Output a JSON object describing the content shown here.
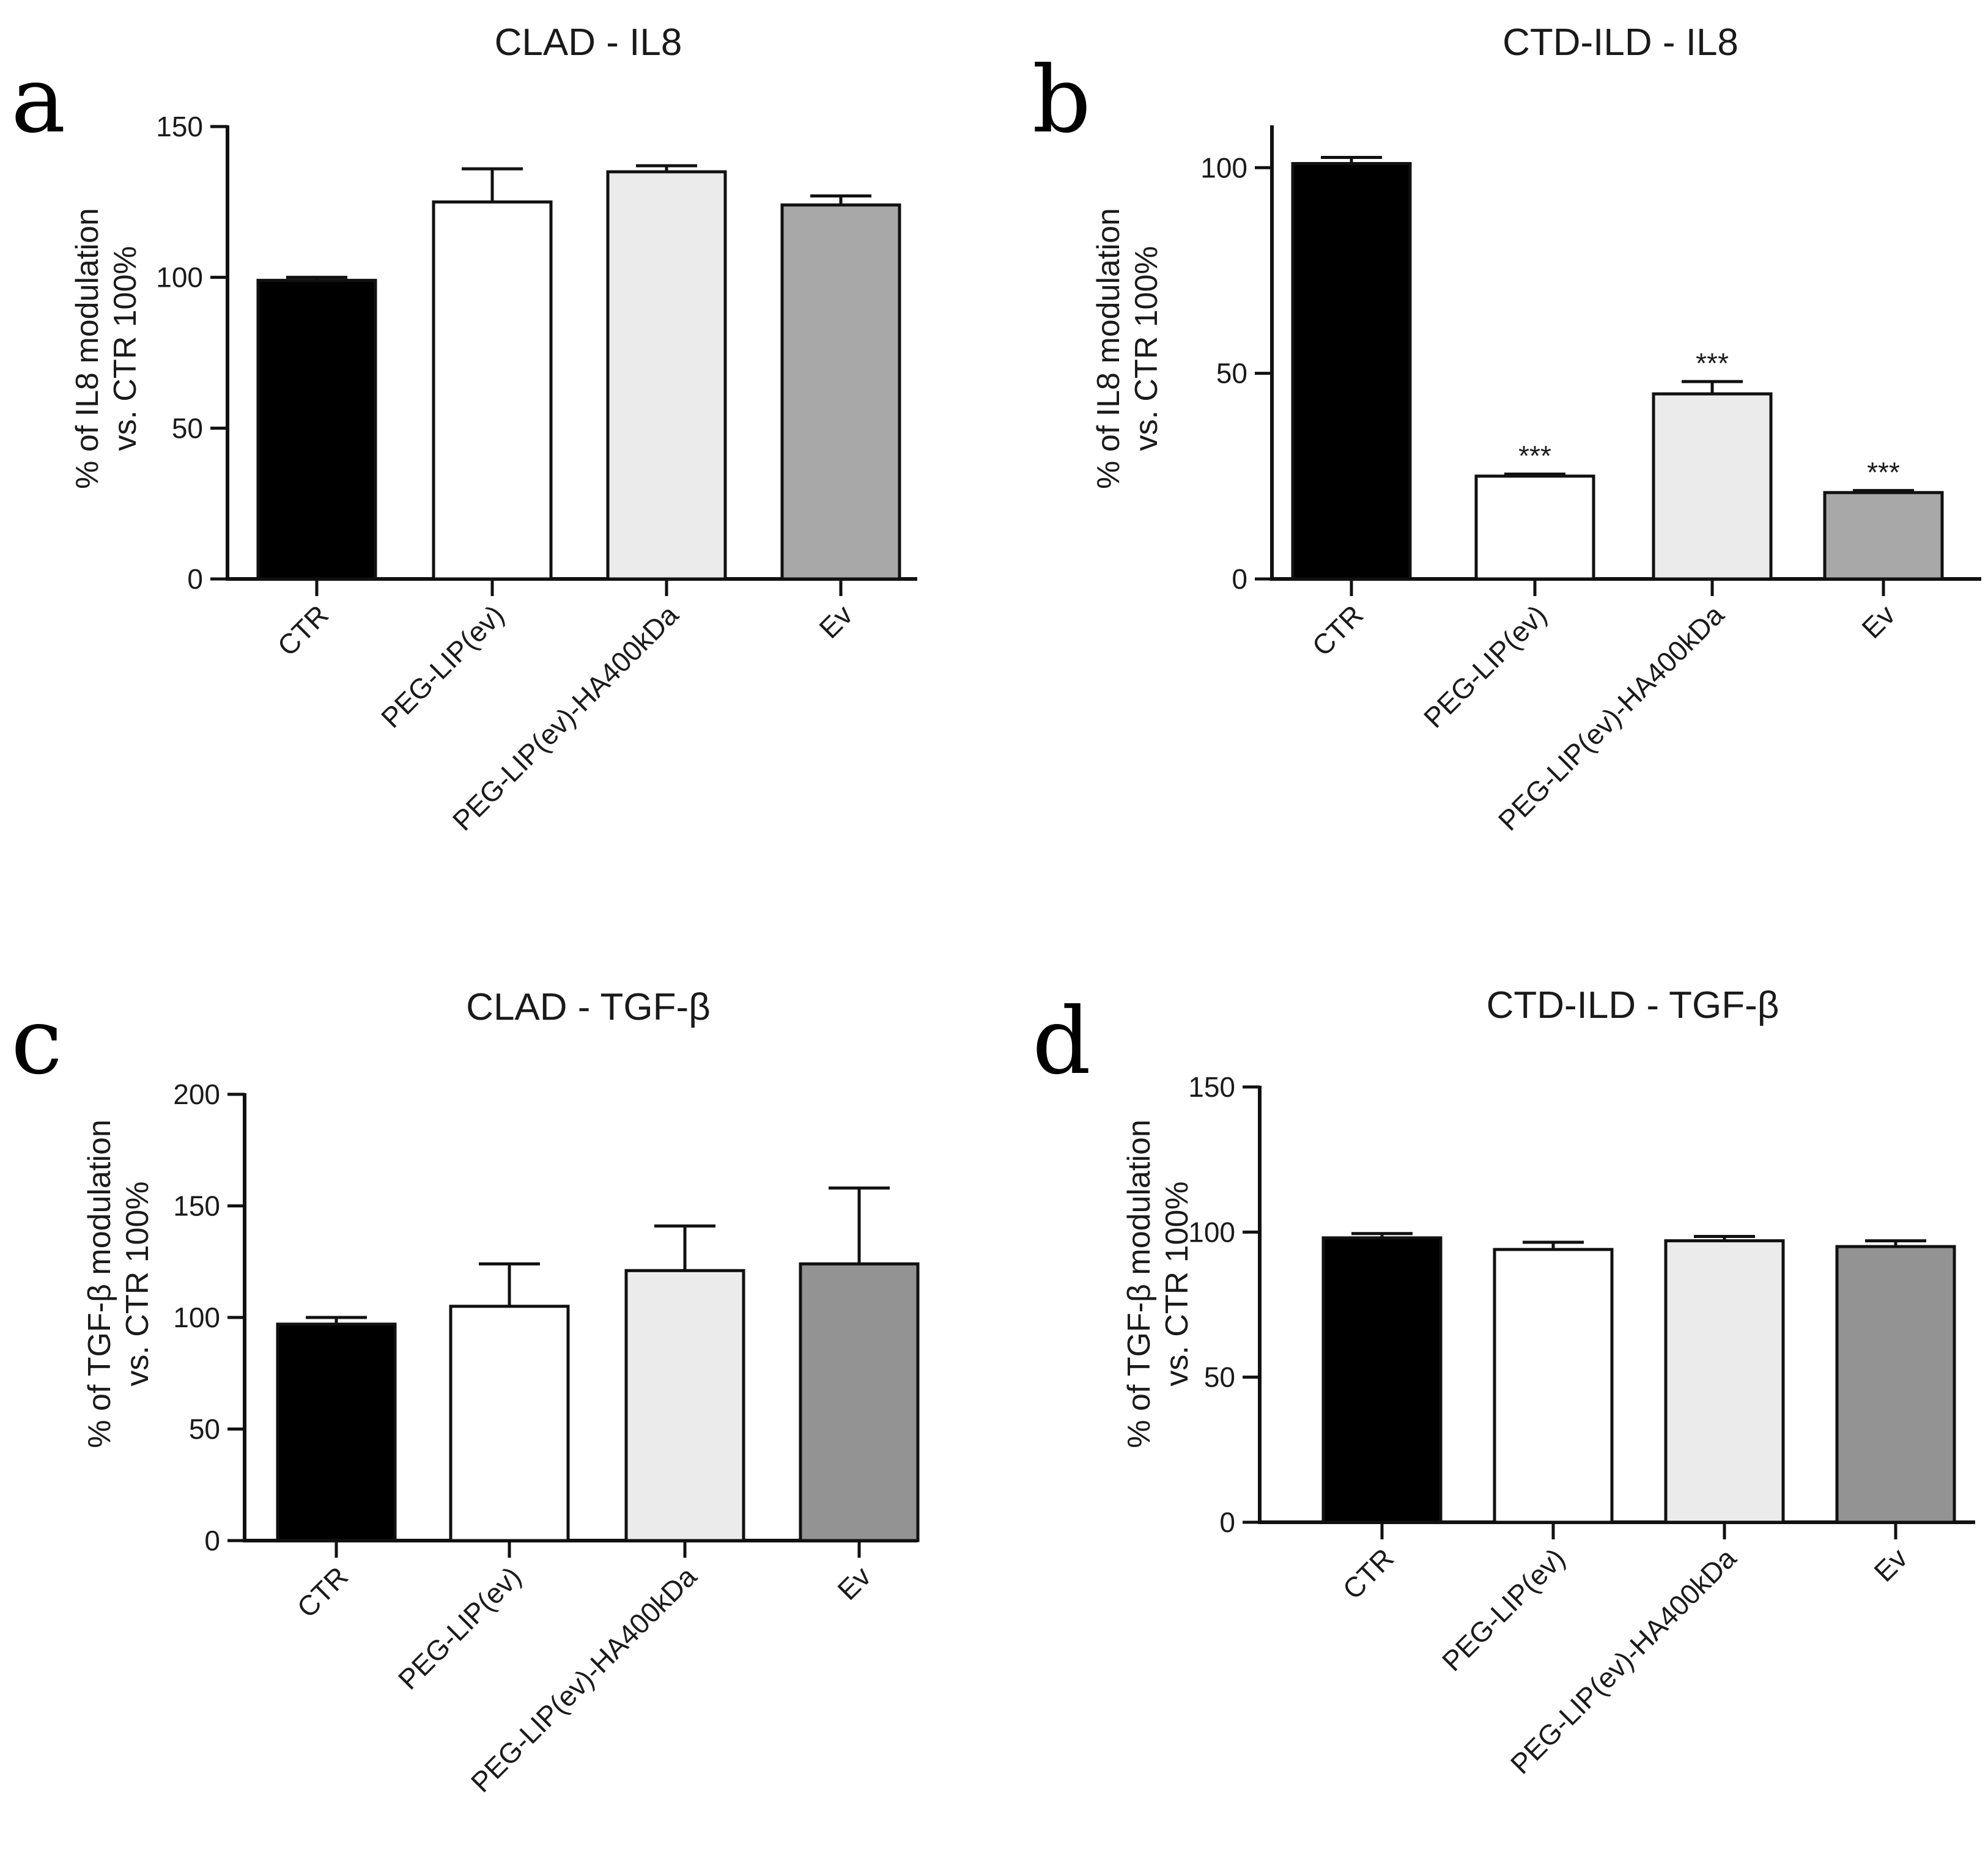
{
  "chart_data": [
    {
      "panel": "a",
      "type": "bar",
      "title": "CLAD - IL8",
      "ylabel_line1": "% of IL8 modulation",
      "ylabel_line2": "vs. CTR 100%",
      "ylim": [
        0,
        150
      ],
      "yticks": [
        0,
        50,
        100,
        150
      ],
      "categories": [
        "CTR",
        "PEG-LIP(ev)",
        "PEG-LIP(ev)-HA400kDa",
        "Ev"
      ],
      "values": [
        99,
        125,
        135,
        124
      ],
      "errors": [
        1,
        11,
        2,
        3
      ],
      "significance": [
        "",
        "",
        "",
        ""
      ],
      "colors": [
        "#000000",
        "#ffffff",
        "#ebebeb",
        "#a8a8a8"
      ]
    },
    {
      "panel": "b",
      "type": "bar",
      "title": "CTD-ILD - IL8",
      "ylabel_line1": "% of IL8 modulation",
      "ylabel_line2": "vs. CTR 100%",
      "ylim": [
        0,
        110
      ],
      "yticks": [
        0,
        50,
        100
      ],
      "categories": [
        "CTR",
        "PEG-LIP(ev)",
        "PEG-LIP(ev)-HA400kDa",
        "Ev"
      ],
      "values": [
        101,
        25,
        45,
        21
      ],
      "errors": [
        1.5,
        0.5,
        3,
        0.5
      ],
      "significance": [
        "",
        "***",
        "***",
        "***"
      ],
      "colors": [
        "#000000",
        "#ffffff",
        "#ebebeb",
        "#a8a8a8"
      ]
    },
    {
      "panel": "c",
      "type": "bar",
      "title": "CLAD - TGF-β",
      "ylabel_line1": "% of TGF-β modulation",
      "ylabel_line2": "vs. CTR 100%",
      "ylim": [
        0,
        200
      ],
      "yticks": [
        0,
        50,
        100,
        150,
        200
      ],
      "categories": [
        "CTR",
        "PEG-LIP(ev)",
        "PEG-LIP(ev)-HA400kDa",
        "Ev"
      ],
      "values": [
        97,
        105,
        121,
        124
      ],
      "errors": [
        3,
        19,
        20,
        34
      ],
      "significance": [
        "",
        "",
        "",
        ""
      ],
      "colors": [
        "#000000",
        "#ffffff",
        "#ebebeb",
        "#939393"
      ]
    },
    {
      "panel": "d",
      "type": "bar",
      "title": "CTD-ILD - TGF-β",
      "ylabel_line1": "% of TGF-β modulation",
      "ylabel_line2": "vs. CTR 100%",
      "ylim": [
        0,
        150
      ],
      "yticks": [
        0,
        50,
        100,
        150
      ],
      "categories": [
        "CTR",
        "PEG-LIP(ev)",
        "PEG-LIP(ev)-HA400kDa",
        "Ev"
      ],
      "values": [
        98,
        94,
        97,
        95
      ],
      "errors": [
        1.5,
        2.5,
        1.5,
        2
      ],
      "significance": [
        "",
        "",
        "",
        ""
      ],
      "colors": [
        "#000000",
        "#ffffff",
        "#ebebeb",
        "#939393"
      ]
    }
  ]
}
